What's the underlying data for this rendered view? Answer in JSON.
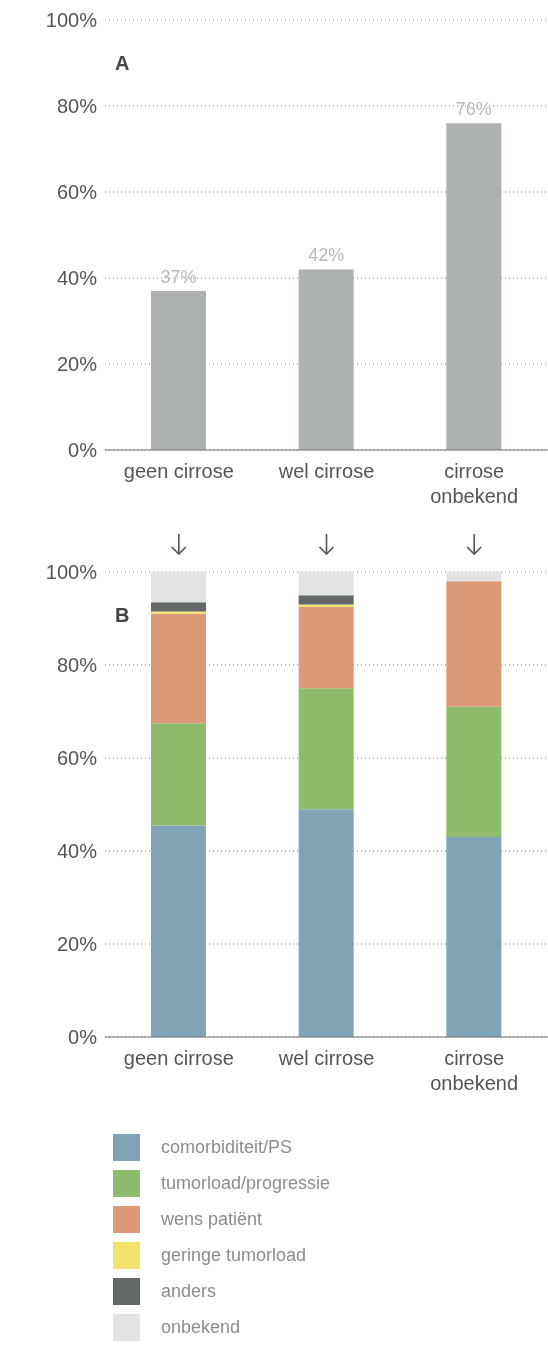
{
  "chart_data": [
    {
      "type": "bar",
      "title": "A",
      "categories": [
        "geen cirrose",
        "wel cirrose",
        "cirrose onbekend"
      ],
      "values": [
        37,
        42,
        76
      ],
      "color": "#aeb1b2",
      "value_labels": [
        "37%",
        "42%",
        "76%"
      ],
      "ylim": [
        0,
        100
      ],
      "yticks": [
        {
          "value": 0,
          "label": "0%"
        },
        {
          "value": 20,
          "label": "20%"
        },
        {
          "value": 40,
          "label": "40%"
        },
        {
          "value": 60,
          "label": "60%"
        },
        {
          "value": 80,
          "label": "80%"
        },
        {
          "value": 100,
          "label": "100%"
        }
      ],
      "grid": "y"
    },
    {
      "type": "bar",
      "title": "B",
      "stacked": true,
      "categories": [
        "geen cirrose",
        "wel cirrose",
        "cirrose onbekend"
      ],
      "series": [
        {
          "name": "comorbiditeit/PS",
          "color": "#7fa4b5",
          "values": [
            45.5,
            49,
            43
          ]
        },
        {
          "name": "tumorload/progressie",
          "color": "#8fbb6d",
          "values": [
            22,
            26,
            28
          ]
        },
        {
          "name": "wens patiënt",
          "color": "#db9977",
          "values": [
            23.5,
            17.5,
            27
          ]
        },
        {
          "name": "geringe tumorload",
          "color": "#f0e26a",
          "values": [
            0.5,
            0.5,
            0
          ]
        },
        {
          "name": "anders",
          "color": "#646869",
          "values": [
            2,
            2,
            0
          ]
        },
        {
          "name": "onbekend",
          "color": "#e2e3e3",
          "values": [
            6.5,
            5,
            2
          ]
        }
      ],
      "ylim": [
        0,
        100
      ],
      "yticks": [
        {
          "value": 0,
          "label": "0%"
        },
        {
          "value": 20,
          "label": "20%"
        },
        {
          "value": 40,
          "label": "40%"
        },
        {
          "value": 60,
          "label": "60%"
        },
        {
          "value": 80,
          "label": "80%"
        },
        {
          "value": 100,
          "label": "100%"
        }
      ],
      "grid": "y",
      "legend": "bottom"
    }
  ]
}
